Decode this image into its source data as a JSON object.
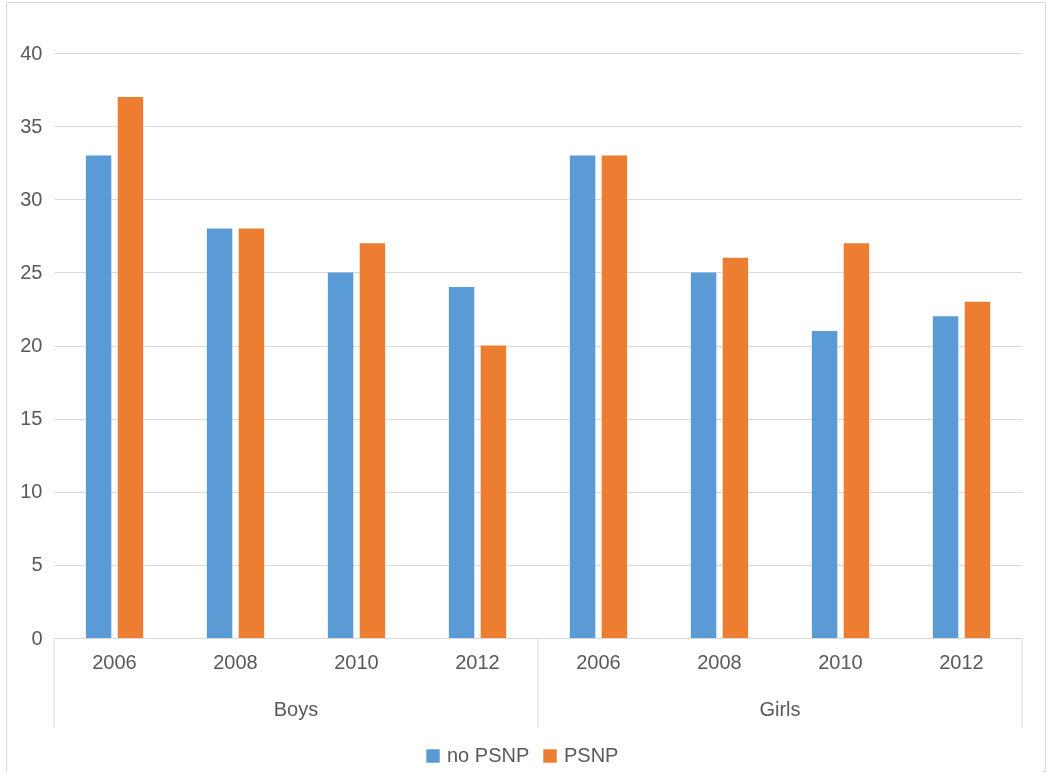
{
  "chart_data": {
    "type": "bar",
    "categories": [
      "2006",
      "2008",
      "2010",
      "2012",
      "2006",
      "2008",
      "2010",
      "2012"
    ],
    "series": [
      {
        "name": "no PSNP",
        "color": "#5b9bd5",
        "values": [
          33,
          28,
          25,
          24,
          33,
          25,
          21,
          22
        ]
      },
      {
        "name": "PSNP",
        "color": "#ed7d31",
        "values": [
          37,
          28,
          27,
          20,
          33,
          26,
          27,
          23
        ]
      }
    ],
    "ylim": [
      0,
      40
    ],
    "yticks": [
      0,
      5,
      10,
      15,
      20,
      25,
      30,
      35,
      40
    ],
    "grid": "y",
    "legend": "bottom",
    "annotations": [
      "Boys",
      "Girls"
    ]
  }
}
